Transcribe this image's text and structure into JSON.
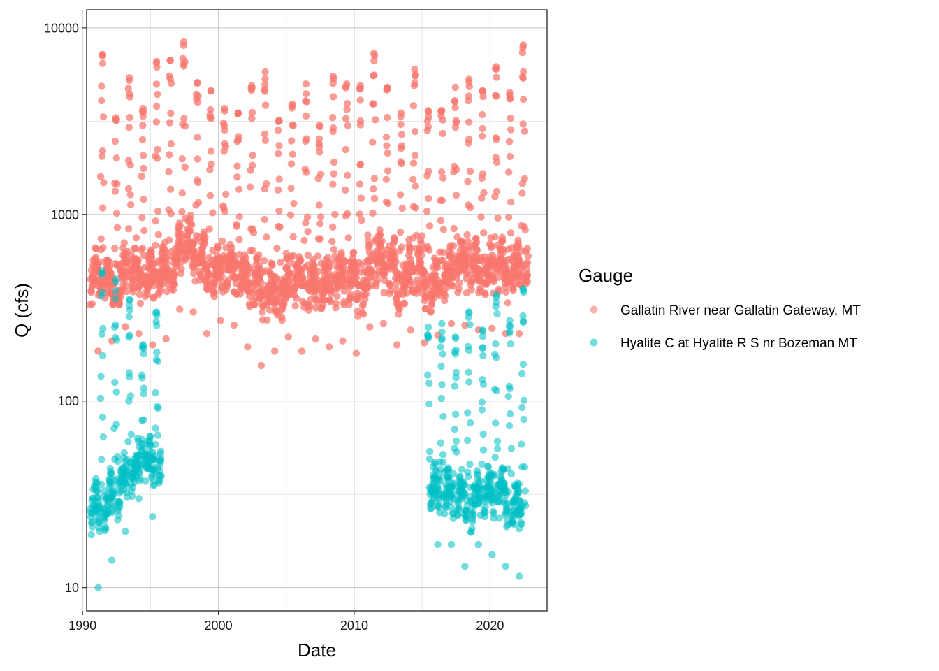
{
  "chart_data": {
    "type": "scatter",
    "title": "",
    "xlabel": "Date",
    "ylabel": "Q (cfs)",
    "y_scale": "log10",
    "xlim": [
      1990.3,
      2024.2
    ],
    "ylim": [
      7.5,
      12500
    ],
    "x_ticks": [
      1990,
      2000,
      2010,
      2020
    ],
    "x_tick_labels": [
      "1990",
      "2000",
      "2010",
      "2020"
    ],
    "y_ticks": [
      10,
      100,
      1000,
      10000
    ],
    "y_tick_labels": [
      "10",
      "100",
      "1000",
      "10000"
    ],
    "grid": true,
    "legend": {
      "title": "Gauge",
      "placement": "right"
    },
    "series": [
      {
        "name": "Gallatin River near Gallatin Gateway, MT",
        "color": "#F8766D",
        "x_start": 1990.6,
        "x_end": 2022.8,
        "annual_peaks": [
          {
            "year": 1991,
            "value": 7200
          },
          {
            "year": 1992,
            "value": 3300
          },
          {
            "year": 1993,
            "value": 5400
          },
          {
            "year": 1994,
            "value": 3700
          },
          {
            "year": 1995,
            "value": 6600
          },
          {
            "year": 1996,
            "value": 6700
          },
          {
            "year": 1997,
            "value": 8400
          },
          {
            "year": 1998,
            "value": 5100
          },
          {
            "year": 1999,
            "value": 4600
          },
          {
            "year": 2000,
            "value": 3700
          },
          {
            "year": 2001,
            "value": 3500
          },
          {
            "year": 2002,
            "value": 4900
          },
          {
            "year": 2003,
            "value": 5800
          },
          {
            "year": 2004,
            "value": 3200
          },
          {
            "year": 2005,
            "value": 3900
          },
          {
            "year": 2006,
            "value": 5000
          },
          {
            "year": 2007,
            "value": 3000
          },
          {
            "year": 2008,
            "value": 5500
          },
          {
            "year": 2009,
            "value": 5000
          },
          {
            "year": 2010,
            "value": 4900
          },
          {
            "year": 2011,
            "value": 7300
          },
          {
            "year": 2012,
            "value": 4800
          },
          {
            "year": 2013,
            "value": 3500
          },
          {
            "year": 2014,
            "value": 6000
          },
          {
            "year": 2015,
            "value": 3600
          },
          {
            "year": 2016,
            "value": 3600
          },
          {
            "year": 2017,
            "value": 4800
          },
          {
            "year": 2018,
            "value": 5300
          },
          {
            "year": 2019,
            "value": 4600
          },
          {
            "year": 2020,
            "value": 6200
          },
          {
            "year": 2021,
            "value": 4500
          },
          {
            "year": 2022,
            "value": 8100
          }
        ],
        "annual_minima": [
          {
            "year": 1991,
            "value": 185
          },
          {
            "year": 1992,
            "value": 210
          },
          {
            "year": 1993,
            "value": 250
          },
          {
            "year": 1994,
            "value": 230
          },
          {
            "year": 1995,
            "value": 200
          },
          {
            "year": 1996,
            "value": 215
          },
          {
            "year": 1997,
            "value": 310
          },
          {
            "year": 1998,
            "value": 300
          },
          {
            "year": 1999,
            "value": 230
          },
          {
            "year": 2000,
            "value": 270
          },
          {
            "year": 2001,
            "value": 255
          },
          {
            "year": 2002,
            "value": 195
          },
          {
            "year": 2003,
            "value": 155
          },
          {
            "year": 2004,
            "value": 185
          },
          {
            "year": 2005,
            "value": 220
          },
          {
            "year": 2006,
            "value": 185
          },
          {
            "year": 2007,
            "value": 215
          },
          {
            "year": 2008,
            "value": 195
          },
          {
            "year": 2009,
            "value": 210
          },
          {
            "year": 2010,
            "value": 180
          },
          {
            "year": 2011,
            "value": 250
          },
          {
            "year": 2012,
            "value": 260
          },
          {
            "year": 2013,
            "value": 200
          },
          {
            "year": 2014,
            "value": 240
          },
          {
            "year": 2015,
            "value": 205
          },
          {
            "year": 2016,
            "value": 225
          },
          {
            "year": 2017,
            "value": 260
          },
          {
            "year": 2018,
            "value": 255
          },
          {
            "year": 2019,
            "value": 240
          },
          {
            "year": 2020,
            "value": 245
          },
          {
            "year": 2021,
            "value": 230
          },
          {
            "year": 2022,
            "value": 230
          }
        ]
      },
      {
        "name": "Hyalite C at Hyalite R S nr Bozeman MT",
        "color": "#00BFC4",
        "periods": [
          [
            1990.6,
            1995.8
          ],
          [
            2015.4,
            2022.6
          ]
        ],
        "annual_peaks": [
          {
            "year": 1991,
            "value": 500
          },
          {
            "year": 1992,
            "value": 450
          },
          {
            "year": 1993,
            "value": 350
          },
          {
            "year": 1994,
            "value": 200
          },
          {
            "year": 1995,
            "value": 300
          },
          {
            "year": 2016,
            "value": 260
          },
          {
            "year": 2017,
            "value": 220
          },
          {
            "year": 2018,
            "value": 300
          },
          {
            "year": 2019,
            "value": 240
          },
          {
            "year": 2020,
            "value": 370
          },
          {
            "year": 2021,
            "value": 270
          },
          {
            "year": 2022,
            "value": 400
          }
        ],
        "annual_minima": [
          {
            "year": 1991,
            "value": 10
          },
          {
            "year": 1992,
            "value": 14
          },
          {
            "year": 1993,
            "value": 20
          },
          {
            "year": 1994,
            "value": 30
          },
          {
            "year": 1995,
            "value": 24
          },
          {
            "year": 2016,
            "value": 17
          },
          {
            "year": 2017,
            "value": 17
          },
          {
            "year": 2018,
            "value": 13
          },
          {
            "year": 2019,
            "value": 17
          },
          {
            "year": 2020,
            "value": 15
          },
          {
            "year": 2021,
            "value": 13
          },
          {
            "year": 2022,
            "value": 11.5
          }
        ]
      }
    ]
  }
}
